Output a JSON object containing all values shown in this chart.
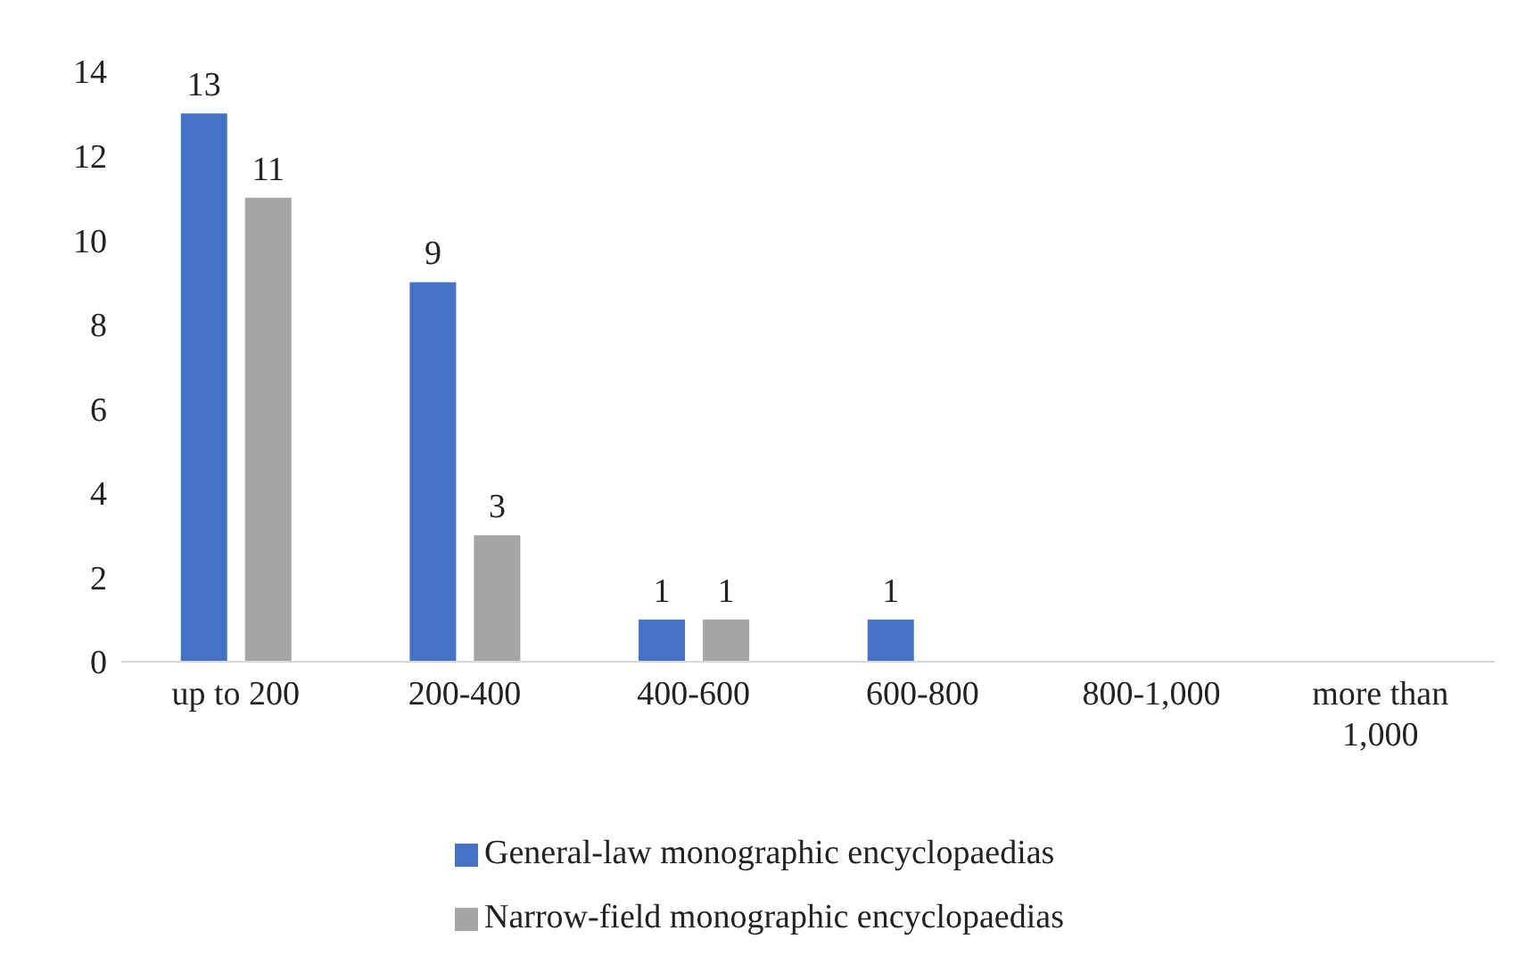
{
  "chart_data": {
    "type": "bar",
    "categories": [
      "up to 200",
      "200-400",
      "400-600",
      "600-800",
      "800-1,000",
      "more than 1,000"
    ],
    "series": [
      {
        "name": "General-law monographic encyclopaedias",
        "color": "#4472c4",
        "values": [
          13,
          9,
          1,
          1,
          0,
          0
        ],
        "value_labels": [
          "13",
          "9",
          "1",
          "1",
          null,
          null
        ]
      },
      {
        "name": "Narrow-field monographic encyclopaedias",
        "color": "#a5a5a5",
        "values": [
          11,
          3,
          1,
          0,
          0,
          0
        ],
        "value_labels": [
          "11",
          "3",
          "1",
          null,
          null,
          null
        ]
      }
    ],
    "ylim": [
      0,
      14
    ],
    "yticks": [
      0,
      2,
      4,
      6,
      8,
      10,
      12,
      14
    ],
    "grid": false,
    "legend": "bottom"
  }
}
